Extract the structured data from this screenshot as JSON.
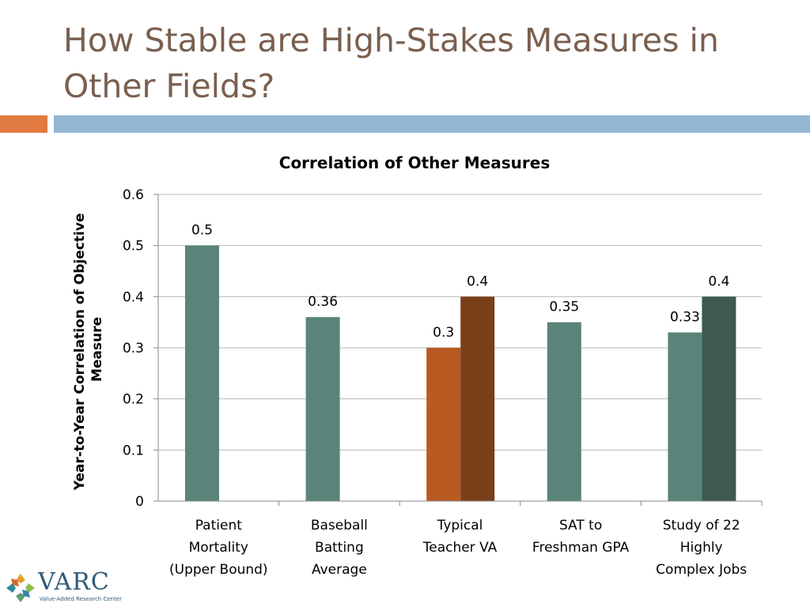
{
  "slide": {
    "title": "How Stable are High-Stakes Measures in Other Fields?"
  },
  "logo": {
    "text": "VARC",
    "subtitle": "Value-Added Research Center"
  },
  "colors": {
    "title": "#7a5f4f",
    "accent_orange": "#e07a40",
    "accent_blue": "#93b6d4",
    "bar_teal": "#5a8479",
    "bar_teal_dark": "#3e5a52",
    "bar_orange": "#b85a22",
    "bar_brown": "#7a3f19",
    "gridline": "#b8b8b8"
  },
  "chart_data": {
    "type": "bar",
    "title": "Correlation of Other Measures",
    "ylabel": "Year-to-Year Correlation of Objective Measure",
    "xlabel": "",
    "ylim": [
      0,
      0.6
    ],
    "yticks": [
      "0",
      "0.1",
      "0.2",
      "0.3",
      "0.4",
      "0.5",
      "0.6"
    ],
    "grid": true,
    "categories": [
      {
        "label": [
          "Patient",
          "Mortality",
          "(Upper Bound)"
        ],
        "bars": [
          {
            "value": 0.5,
            "label": "0.5",
            "color": "#5a8479"
          }
        ]
      },
      {
        "label": [
          "Baseball",
          "Batting",
          "Average"
        ],
        "bars": [
          {
            "value": 0.36,
            "label": "0.36",
            "color": "#5a8479"
          }
        ]
      },
      {
        "label": [
          "Typical",
          "Teacher VA"
        ],
        "bars": [
          {
            "value": 0.3,
            "label": "0.3",
            "color": "#b85a22"
          },
          {
            "value": 0.4,
            "label": "0.4",
            "color": "#7a3f19"
          }
        ]
      },
      {
        "label": [
          "SAT to",
          "Freshman GPA"
        ],
        "bars": [
          {
            "value": 0.35,
            "label": "0.35",
            "color": "#5a8479"
          }
        ]
      },
      {
        "label": [
          "Study of 22",
          "Highly",
          "Complex Jobs"
        ],
        "bars": [
          {
            "value": 0.33,
            "label": "0.33",
            "color": "#5a8479"
          },
          {
            "value": 0.4,
            "label": "0.4",
            "color": "#3e5a52"
          }
        ]
      }
    ]
  }
}
